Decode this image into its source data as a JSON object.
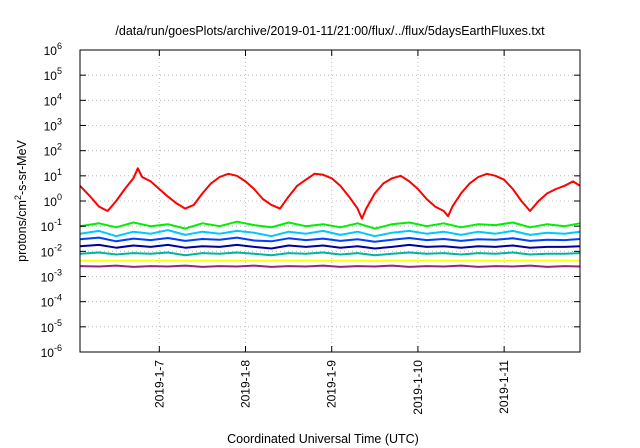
{
  "chart_data": {
    "type": "line",
    "title": "/data/run/goesPlots/archive/2019-01-11/21:00/flux/../flux/5daysEarthFluxes.txt",
    "xlabel": "Coordinated Universal Time (UTC)",
    "ylabel": {
      "base": "protons/cm",
      "exp": "2",
      "rest": "-s-sr-MeV"
    },
    "yscale": "log",
    "ylim": [
      1e-06,
      1000000.0
    ],
    "xlim": [
      6.08,
      11.88
    ],
    "x_units": "days of January 2019",
    "grid": true,
    "legend": "none",
    "y_ticks": [
      {
        "value": 1000000.0,
        "base": "10",
        "exp": "6"
      },
      {
        "value": 100000.0,
        "base": "10",
        "exp": "5"
      },
      {
        "value": 10000.0,
        "base": "10",
        "exp": "4"
      },
      {
        "value": 1000.0,
        "base": "10",
        "exp": "3"
      },
      {
        "value": 100.0,
        "base": "10",
        "exp": "2"
      },
      {
        "value": 10.0,
        "base": "10",
        "exp": "1"
      },
      {
        "value": 1.0,
        "base": "10",
        "exp": "0"
      },
      {
        "value": 0.1,
        "base": "10",
        "exp": "-1"
      },
      {
        "value": 0.01,
        "base": "10",
        "exp": "-2"
      },
      {
        "value": 0.001,
        "base": "10",
        "exp": "-3"
      },
      {
        "value": 0.0001,
        "base": "10",
        "exp": "-4"
      },
      {
        "value": 1e-05,
        "base": "10",
        "exp": "-5"
      },
      {
        "value": 1e-06,
        "base": "10",
        "exp": "-6"
      }
    ],
    "x_ticks": [
      {
        "value": 7,
        "label": "2019-1-7"
      },
      {
        "value": 8,
        "label": "2019-1-8"
      },
      {
        "value": 9,
        "label": "2019-1-9"
      },
      {
        "value": 10,
        "label": "2019-1-10"
      },
      {
        "value": 11,
        "label": "2019-1-11"
      }
    ],
    "series": [
      {
        "color": "#ff0000",
        "x": [
          6.08,
          6.2,
          6.3,
          6.4,
          6.5,
          6.6,
          6.7,
          6.75,
          6.8,
          6.9,
          7.0,
          7.1,
          7.2,
          7.3,
          7.4,
          7.5,
          7.6,
          7.7,
          7.8,
          7.9,
          8.0,
          8.1,
          8.2,
          8.3,
          8.4,
          8.5,
          8.6,
          8.7,
          8.8,
          8.9,
          9.0,
          9.1,
          9.2,
          9.3,
          9.35,
          9.4,
          9.5,
          9.6,
          9.7,
          9.8,
          9.9,
          10.0,
          10.1,
          10.2,
          10.3,
          10.35,
          10.4,
          10.5,
          10.6,
          10.7,
          10.8,
          10.9,
          11.0,
          11.1,
          11.2,
          11.3,
          11.4,
          11.5,
          11.6,
          11.7,
          11.8,
          11.88
        ],
        "y": [
          4,
          1.5,
          0.6,
          0.4,
          1,
          3,
          8,
          20,
          9,
          6,
          3,
          1.5,
          0.8,
          0.5,
          0.7,
          2,
          5,
          9,
          12,
          10,
          6,
          3,
          1.2,
          0.7,
          0.5,
          1.5,
          4,
          7,
          12,
          11,
          8,
          4,
          1.5,
          0.5,
          0.2,
          0.5,
          2,
          5,
          8,
          10,
          6,
          3,
          1.2,
          0.6,
          0.4,
          0.25,
          0.6,
          2,
          5,
          9,
          12,
          10,
          7,
          3,
          1,
          0.4,
          1,
          2,
          3,
          4,
          6,
          4
        ]
      },
      {
        "color": "#00ee00",
        "x": [
          6.08,
          6.3,
          6.5,
          6.7,
          6.9,
          7.1,
          7.3,
          7.5,
          7.7,
          7.9,
          8.1,
          8.3,
          8.5,
          8.7,
          8.9,
          9.1,
          9.3,
          9.5,
          9.7,
          9.9,
          10.1,
          10.3,
          10.5,
          10.7,
          10.9,
          11.1,
          11.3,
          11.5,
          11.7,
          11.88
        ],
        "y": [
          0.1,
          0.13,
          0.09,
          0.14,
          0.1,
          0.12,
          0.08,
          0.13,
          0.1,
          0.15,
          0.11,
          0.09,
          0.14,
          0.1,
          0.12,
          0.09,
          0.13,
          0.08,
          0.12,
          0.14,
          0.1,
          0.13,
          0.09,
          0.12,
          0.11,
          0.14,
          0.09,
          0.12,
          0.1,
          0.13
        ]
      },
      {
        "color": "#00c8ff",
        "x": [
          6.08,
          6.3,
          6.5,
          6.7,
          6.9,
          7.1,
          7.3,
          7.5,
          7.7,
          7.9,
          8.1,
          8.3,
          8.5,
          8.7,
          8.9,
          9.1,
          9.3,
          9.5,
          9.7,
          9.9,
          10.1,
          10.3,
          10.5,
          10.7,
          10.9,
          11.1,
          11.3,
          11.5,
          11.7,
          11.88
        ],
        "y": [
          0.05,
          0.065,
          0.04,
          0.06,
          0.05,
          0.07,
          0.045,
          0.06,
          0.05,
          0.065,
          0.055,
          0.04,
          0.06,
          0.05,
          0.065,
          0.045,
          0.06,
          0.04,
          0.055,
          0.065,
          0.05,
          0.06,
          0.045,
          0.06,
          0.05,
          0.065,
          0.045,
          0.055,
          0.05,
          0.06
        ]
      },
      {
        "color": "#0040ff",
        "x": [
          6.08,
          6.3,
          6.5,
          6.7,
          6.9,
          7.1,
          7.3,
          7.5,
          7.7,
          7.9,
          8.1,
          8.3,
          8.5,
          8.7,
          8.9,
          9.1,
          9.3,
          9.5,
          9.7,
          9.9,
          10.1,
          10.3,
          10.5,
          10.7,
          10.9,
          11.1,
          11.3,
          11.5,
          11.7,
          11.88
        ],
        "y": [
          0.03,
          0.035,
          0.025,
          0.032,
          0.028,
          0.034,
          0.026,
          0.031,
          0.029,
          0.035,
          0.027,
          0.025,
          0.033,
          0.028,
          0.032,
          0.026,
          0.03,
          0.024,
          0.029,
          0.034,
          0.028,
          0.031,
          0.026,
          0.03,
          0.029,
          0.033,
          0.026,
          0.029,
          0.028,
          0.031
        ]
      },
      {
        "color": "#0000a0",
        "x": [
          6.08,
          6.3,
          6.5,
          6.7,
          6.9,
          7.1,
          7.3,
          7.5,
          7.7,
          7.9,
          8.1,
          8.3,
          8.5,
          8.7,
          8.9,
          9.1,
          9.3,
          9.5,
          9.7,
          9.9,
          10.1,
          10.3,
          10.5,
          10.7,
          10.9,
          11.1,
          11.3,
          11.5,
          11.7,
          11.88
        ],
        "y": [
          0.016,
          0.018,
          0.014,
          0.017,
          0.015,
          0.018,
          0.014,
          0.016,
          0.015,
          0.018,
          0.015,
          0.013,
          0.017,
          0.015,
          0.017,
          0.014,
          0.016,
          0.013,
          0.015,
          0.018,
          0.015,
          0.016,
          0.014,
          0.016,
          0.015,
          0.017,
          0.014,
          0.015,
          0.015,
          0.016
        ]
      },
      {
        "color": "#00b4a0",
        "x": [
          6.08,
          6.3,
          6.5,
          6.7,
          6.9,
          7.1,
          7.3,
          7.5,
          7.7,
          7.9,
          8.1,
          8.3,
          8.5,
          8.7,
          8.9,
          9.1,
          9.3,
          9.5,
          9.7,
          9.9,
          10.1,
          10.3,
          10.5,
          10.7,
          10.9,
          11.1,
          11.3,
          11.5,
          11.7,
          11.88
        ],
        "y": [
          0.008,
          0.009,
          0.0075,
          0.0085,
          0.008,
          0.009,
          0.007,
          0.0085,
          0.008,
          0.009,
          0.008,
          0.007,
          0.0085,
          0.008,
          0.009,
          0.0075,
          0.0085,
          0.007,
          0.008,
          0.009,
          0.008,
          0.0085,
          0.0075,
          0.0085,
          0.008,
          0.009,
          0.0075,
          0.008,
          0.008,
          0.0085
        ]
      },
      {
        "color": "#ffff00",
        "x": [
          6.08,
          6.5,
          7.0,
          7.5,
          8.0,
          8.5,
          9.0,
          9.5,
          10.0,
          10.5,
          11.0,
          11.5,
          11.88
        ],
        "y": [
          0.0042,
          0.0042,
          0.0043,
          0.0042,
          0.0042,
          0.0043,
          0.0042,
          0.0042,
          0.0043,
          0.0042,
          0.0042,
          0.0043,
          0.0042
        ]
      },
      {
        "color": "#a0207a",
        "x": [
          6.08,
          6.3,
          6.5,
          6.7,
          6.9,
          7.1,
          7.3,
          7.5,
          7.7,
          7.9,
          8.1,
          8.3,
          8.5,
          8.7,
          8.9,
          9.1,
          9.3,
          9.5,
          9.7,
          9.9,
          10.1,
          10.3,
          10.5,
          10.7,
          10.9,
          11.1,
          11.3,
          11.5,
          11.7,
          11.88
        ],
        "y": [
          0.0026,
          0.0025,
          0.0027,
          0.0024,
          0.0026,
          0.0025,
          0.0027,
          0.0024,
          0.0026,
          0.0025,
          0.0027,
          0.0024,
          0.0026,
          0.0025,
          0.0027,
          0.0024,
          0.0026,
          0.0025,
          0.0027,
          0.0024,
          0.0026,
          0.0025,
          0.0027,
          0.0024,
          0.0026,
          0.0025,
          0.0027,
          0.0024,
          0.0026,
          0.0025
        ]
      }
    ]
  }
}
